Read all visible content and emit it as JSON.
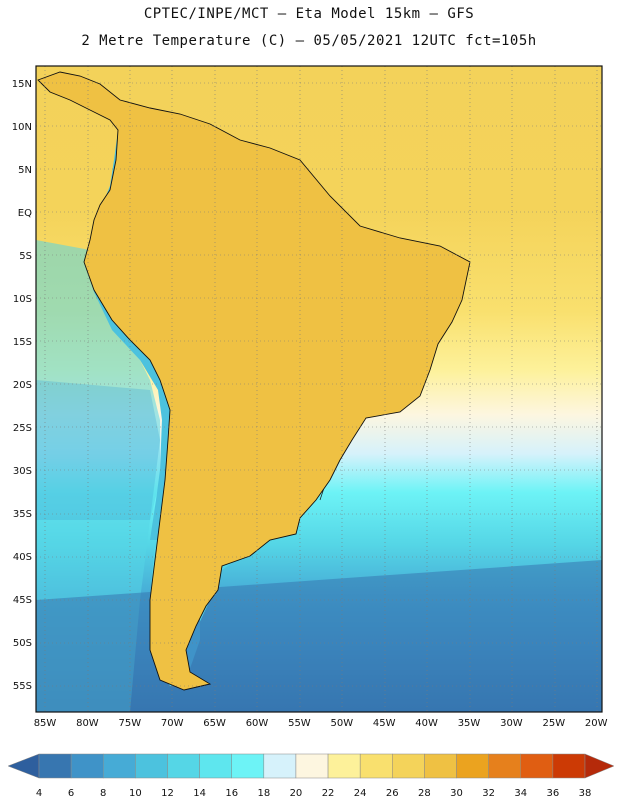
{
  "title": {
    "line1": "CPTEC/INPE/MCT –  Eta Model 15km – GFS",
    "line2": "2 Metre Temperature (C) – 05/05/2021 12UTC fct=105h"
  },
  "map": {
    "lon_range": [
      -86,
      -19.5
    ],
    "lat_range": [
      -58,
      16.5
    ],
    "lon_labels": [
      "85W",
      "80W",
      "75W",
      "70W",
      "65W",
      "60W",
      "55W",
      "50W",
      "45W",
      "40W",
      "35W",
      "30W",
      "25W",
      "20W"
    ],
    "lat_labels": [
      "15N",
      "10N",
      "5N",
      "EQ",
      "5S",
      "10S",
      "15S",
      "20S",
      "25S",
      "30S",
      "35S",
      "40S",
      "45S",
      "50S",
      "55S"
    ]
  },
  "colorbar": {
    "values": [
      "4",
      "6",
      "8",
      "10",
      "12",
      "14",
      "16",
      "18",
      "20",
      "22",
      "24",
      "26",
      "28",
      "30",
      "32",
      "34",
      "36",
      "38"
    ],
    "colors": [
      "#2e5f9e",
      "#3776b0",
      "#3f93c8",
      "#46abd6",
      "#4cc2de",
      "#55d6e6",
      "#5ee6ee",
      "#6df3f6",
      "#d6f2fb",
      "#fdf6e0",
      "#fdf19a",
      "#f9e06e",
      "#f4d35a",
      "#efc143",
      "#eba31f",
      "#e6801c",
      "#e05e12",
      "#cc3a05",
      "#b52a0a"
    ]
  }
}
